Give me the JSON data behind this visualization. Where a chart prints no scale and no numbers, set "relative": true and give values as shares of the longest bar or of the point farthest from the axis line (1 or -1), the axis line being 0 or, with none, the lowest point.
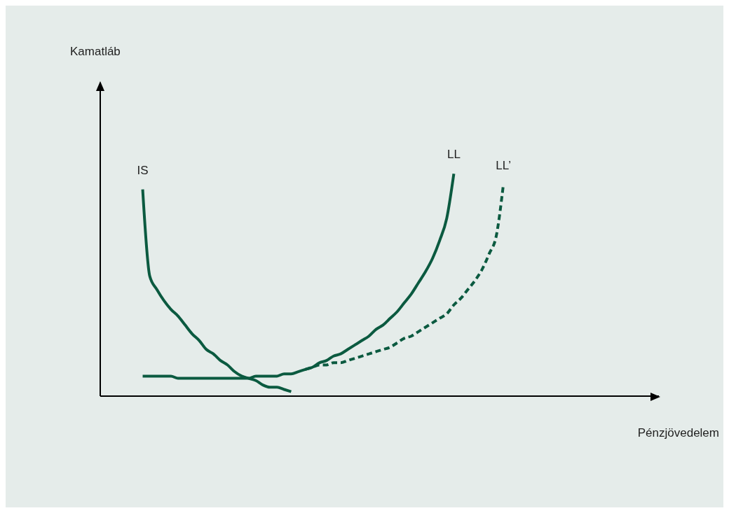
{
  "chart_data": {
    "type": "line",
    "relative": true,
    "xlabel": "Pénzjövedelem",
    "annotations": [
      "Kamatláb"
    ],
    "categories": [
      null,
      null,
      null,
      null,
      null,
      null,
      null,
      null,
      null,
      null,
      null,
      null,
      null,
      null,
      null,
      null,
      null,
      null,
      null,
      null,
      null,
      null,
      null,
      null,
      null,
      null,
      null,
      null,
      null,
      null,
      null,
      null,
      null,
      null,
      null,
      null,
      null,
      null,
      null,
      null,
      null,
      null,
      null,
      null,
      null,
      null,
      null,
      null,
      null,
      null,
      null,
      null,
      null,
      null,
      null,
      null,
      null,
      null,
      null,
      null,
      null,
      null,
      null,
      null,
      null,
      null,
      null,
      null,
      null,
      null,
      null,
      null,
      null,
      null,
      null,
      null,
      null,
      null,
      null,
      null
    ],
    "series": [
      {
        "name": "IS",
        "color": "#0b5a40",
        "line_style": "solid",
        "values": [
          null,
          null,
          null,
          null,
          null,
          null,
          0.93,
          0.54,
          0.48,
          0.43,
          0.39,
          0.36,
          0.32,
          0.28,
          0.25,
          0.21,
          0.19,
          0.16,
          0.14,
          0.11,
          0.09,
          0.08,
          0.07,
          0.05,
          0.04,
          0.04,
          0.03,
          0.02,
          null,
          null,
          null,
          null,
          null,
          null,
          null,
          null,
          null,
          null,
          null,
          null,
          null,
          null,
          null,
          null,
          null,
          null,
          null,
          null,
          null,
          null,
          null,
          null,
          null,
          null,
          null,
          null,
          null,
          null,
          null,
          null,
          null,
          null,
          null,
          null,
          null,
          null,
          null,
          null,
          null,
          null,
          null,
          null,
          null,
          null,
          null,
          null,
          null,
          null,
          null,
          null
        ]
      },
      {
        "name": "LL",
        "color": "#0b5a40",
        "line_style": "solid",
        "values": [
          null,
          null,
          null,
          null,
          null,
          null,
          0.09,
          0.09,
          0.09,
          0.09,
          0.09,
          0.08,
          0.08,
          0.08,
          0.08,
          0.08,
          0.08,
          0.08,
          0.08,
          0.08,
          0.08,
          0.08,
          0.09,
          0.09,
          0.09,
          0.09,
          0.1,
          0.1,
          0.11,
          0.12,
          0.13,
          0.15,
          0.16,
          0.18,
          0.19,
          0.21,
          0.23,
          0.25,
          0.27,
          0.3,
          0.32,
          0.35,
          0.38,
          0.42,
          0.46,
          0.51,
          0.56,
          0.62,
          0.7,
          0.8,
          1.0,
          null,
          null,
          null,
          null,
          null,
          null,
          null,
          null,
          null,
          null,
          null,
          null,
          null,
          null,
          null,
          null,
          null,
          null,
          null,
          null,
          null,
          null,
          null,
          null,
          null,
          null,
          null,
          null,
          null
        ]
      },
      {
        "name": "LL’",
        "color": "#0b5a40",
        "line_style": "dashed",
        "values": [
          null,
          null,
          null,
          null,
          null,
          null,
          null,
          null,
          null,
          null,
          null,
          null,
          null,
          null,
          null,
          null,
          null,
          null,
          null,
          null,
          null,
          null,
          null,
          null,
          null,
          null,
          null,
          null,
          null,
          0.12,
          0.13,
          0.14,
          0.14,
          0.15,
          0.15,
          0.16,
          0.17,
          0.18,
          0.19,
          0.2,
          0.21,
          0.22,
          0.24,
          0.26,
          0.27,
          0.29,
          0.31,
          0.33,
          0.35,
          0.37,
          0.41,
          0.44,
          0.48,
          0.52,
          0.57,
          0.64,
          0.72,
          0.95,
          null,
          null,
          null,
          null,
          null,
          null,
          null,
          null,
          null,
          null,
          null,
          null,
          null,
          null,
          null,
          null,
          null,
          null,
          null,
          null,
          null,
          null
        ]
      }
    ]
  }
}
